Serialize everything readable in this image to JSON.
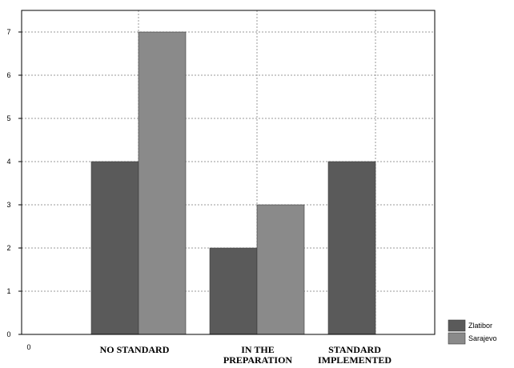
{
  "chart_data": {
    "type": "bar",
    "title": "",
    "xlabel": "",
    "ylabel": "",
    "categories": [
      [
        "NO STANDARD"
      ],
      [
        "IN THE",
        "PREPARATION"
      ],
      [
        "STANDARD",
        "IMPLEMENTED"
      ]
    ],
    "series": [
      {
        "name": "Zlatibor",
        "values": [
          4,
          2,
          4
        ],
        "color": "#5a5a5a"
      },
      {
        "name": "Sarajevo",
        "values": [
          7,
          3,
          0
        ],
        "color": "#8a8a8a"
      }
    ],
    "ylim": [
      0,
      8
    ],
    "yticks": [
      "0",
      "1",
      "2",
      "3",
      "4",
      "5",
      "6",
      "7"
    ],
    "x_origin_label": "0",
    "grid": true,
    "legend": "bottom-right"
  }
}
